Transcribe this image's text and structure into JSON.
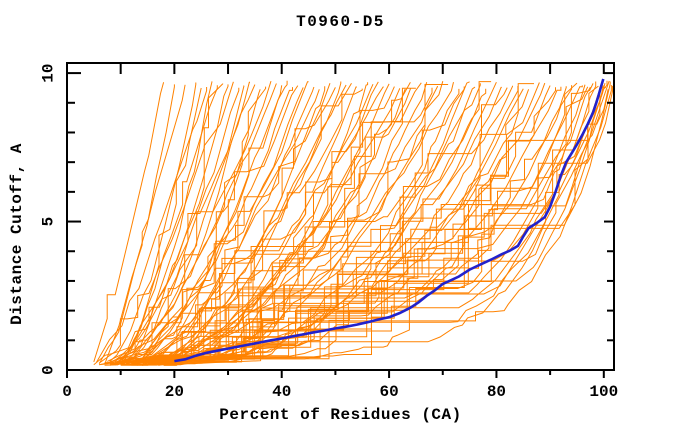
{
  "chart_data": {
    "type": "line",
    "title": "T0960-D5",
    "xlabel": "Percent of Residues (CA)",
    "ylabel": "Distance Cutoff, A",
    "xlim": [
      0,
      101.9
    ],
    "ylim": [
      0,
      10.34
    ],
    "x_major_ticks": [
      0,
      20,
      40,
      60,
      80,
      100
    ],
    "x_minor_tick_step": 10,
    "y_major_ticks": [
      0,
      5,
      10
    ],
    "y_minor_tick_step": 1,
    "grid": "off",
    "legend": "none",
    "colors": {
      "prediction_lines": "#ff8200",
      "highlighted_model": "#2222cc",
      "axes": "#000000",
      "background": "#ffffff"
    },
    "highlighted_model": {
      "color_name": "blue",
      "points": [
        [
          20,
          0.3
        ],
        [
          22,
          0.36
        ],
        [
          24,
          0.48
        ],
        [
          26,
          0.58
        ],
        [
          28,
          0.65
        ],
        [
          30,
          0.72
        ],
        [
          32,
          0.79
        ],
        [
          34,
          0.86
        ],
        [
          36,
          0.93
        ],
        [
          38,
          1.0
        ],
        [
          40,
          1.06
        ],
        [
          42,
          1.13
        ],
        [
          44,
          1.2
        ],
        [
          46,
          1.27
        ],
        [
          48,
          1.33
        ],
        [
          50,
          1.4
        ],
        [
          52,
          1.46
        ],
        [
          54,
          1.53
        ],
        [
          56,
          1.61
        ],
        [
          58,
          1.7
        ],
        [
          60,
          1.78
        ],
        [
          62,
          1.92
        ],
        [
          64,
          2.1
        ],
        [
          65.5,
          2.28
        ],
        [
          67,
          2.5
        ],
        [
          68.5,
          2.68
        ],
        [
          70,
          2.9
        ],
        [
          71.5,
          3.02
        ],
        [
          73,
          3.15
        ],
        [
          75,
          3.38
        ],
        [
          77,
          3.55
        ],
        [
          79,
          3.72
        ],
        [
          81,
          3.9
        ],
        [
          82.5,
          4.02
        ],
        [
          84,
          4.18
        ],
        [
          85,
          4.5
        ],
        [
          86,
          4.78
        ],
        [
          87.5,
          4.95
        ],
        [
          89,
          5.15
        ],
        [
          90,
          5.5
        ],
        [
          91,
          6.0
        ],
        [
          92,
          6.55
        ],
        [
          93,
          7.0
        ],
        [
          94,
          7.3
        ],
        [
          95,
          7.6
        ],
        [
          96,
          7.92
        ],
        [
          97,
          8.28
        ],
        [
          98,
          8.68
        ],
        [
          98.6,
          9.0
        ],
        [
          99.1,
          9.3
        ],
        [
          99.5,
          9.55
        ],
        [
          99.9,
          9.8
        ]
      ]
    },
    "prediction_models": {
      "color_name": "orange",
      "y_baseline": 0.2,
      "y_top": 9.6,
      "curve_params_legend": [
        "x_percent_at_liftoff",
        "x_percent_at_top",
        "shape_exponent"
      ],
      "curve_params": [
        [
          5,
          18,
          1.2
        ],
        [
          6,
          20,
          1.5
        ],
        [
          7,
          22,
          1.1
        ],
        [
          8,
          24,
          1.6
        ],
        [
          5.5,
          26,
          1.3
        ],
        [
          9,
          27,
          1.8
        ],
        [
          10,
          28,
          1.2
        ],
        [
          6,
          29,
          1.5
        ],
        [
          11,
          30,
          1.4
        ],
        [
          7.5,
          31,
          1.7
        ],
        [
          12,
          32,
          1.3
        ],
        [
          8,
          33,
          1.9
        ],
        [
          13,
          34,
          1.5
        ],
        [
          9,
          35,
          1.2
        ],
        [
          14,
          36,
          1.8
        ],
        [
          10,
          25,
          1.4
        ],
        [
          6,
          37,
          1.9
        ],
        [
          5,
          38,
          1.6
        ],
        [
          11,
          39,
          1.3
        ],
        [
          7,
          40,
          2.0
        ],
        [
          12,
          41,
          1.5
        ],
        [
          8,
          42,
          1.8
        ],
        [
          13,
          43,
          1.4
        ],
        [
          6,
          44,
          2.1
        ],
        [
          14,
          45,
          1.6
        ],
        [
          9,
          46,
          1.9
        ],
        [
          15,
          47,
          1.3
        ],
        [
          10,
          48,
          2.2
        ],
        [
          16,
          49,
          1.7
        ],
        [
          7,
          50,
          1.5
        ],
        [
          12,
          51,
          2.0
        ],
        [
          8,
          52,
          1.8
        ],
        [
          17,
          53,
          1.4
        ],
        [
          11,
          54,
          2.3
        ],
        [
          9,
          55,
          1.6
        ],
        [
          18,
          56,
          2.0
        ],
        [
          13,
          57,
          1.8
        ],
        [
          10,
          58,
          2.4
        ],
        [
          15,
          59,
          1.5
        ],
        [
          12,
          60,
          2.1
        ],
        [
          8,
          61,
          2.2
        ],
        [
          14,
          62,
          1.8
        ],
        [
          10,
          63,
          2.5
        ],
        [
          16,
          64,
          2.0
        ],
        [
          7,
          64,
          2.4
        ],
        [
          9,
          65,
          2.8
        ],
        [
          12,
          66,
          1.9
        ],
        [
          18,
          67,
          2.3
        ],
        [
          11,
          68,
          2.6
        ],
        [
          15,
          69,
          2.1
        ],
        [
          8,
          70,
          2.9
        ],
        [
          13,
          71,
          2.4
        ],
        [
          17,
          72,
          2.0
        ],
        [
          10,
          73,
          3.0
        ],
        [
          14,
          74,
          2.2
        ],
        [
          19,
          75,
          2.6
        ],
        [
          9,
          76,
          3.2
        ],
        [
          16,
          77,
          2.3
        ],
        [
          12,
          78,
          2.8
        ],
        [
          18,
          79,
          2.5
        ],
        [
          11,
          80,
          3.3
        ],
        [
          15,
          81,
          2.7
        ],
        [
          13,
          82,
          3.0
        ],
        [
          19,
          83,
          2.4
        ],
        [
          10,
          84,
          3.5
        ],
        [
          16,
          85,
          2.9
        ],
        [
          12,
          86,
          3.2
        ],
        [
          17,
          87,
          2.8
        ],
        [
          9,
          88,
          3.6
        ],
        [
          14,
          89,
          3.0
        ],
        [
          19,
          90,
          3.4
        ],
        [
          11,
          91,
          3.8
        ],
        [
          16,
          92,
          3.1
        ],
        [
          13,
          93,
          4.0
        ],
        [
          18,
          94,
          3.3
        ],
        [
          10,
          95,
          4.3
        ],
        [
          15,
          96,
          3.6
        ],
        [
          12,
          96.5,
          4.6
        ],
        [
          19,
          97,
          3.9
        ],
        [
          9,
          97.5,
          5.0
        ],
        [
          16,
          98,
          4.2
        ],
        [
          13,
          98.5,
          5.4
        ],
        [
          17,
          99,
          4.5
        ],
        [
          11,
          99.3,
          5.8
        ],
        [
          14,
          99.6,
          4.8
        ],
        [
          18,
          99.9,
          6.2
        ],
        [
          10,
          100.2,
          5.2
        ],
        [
          15,
          100.4,
          6.6
        ],
        [
          12,
          100.6,
          5.6
        ],
        [
          16,
          100.8,
          7.0
        ],
        [
          13,
          101,
          6.0
        ],
        [
          19,
          101.2,
          7.5
        ],
        [
          15,
          101.4,
          6.4
        ],
        [
          17,
          101.6,
          8.0
        ]
      ]
    }
  }
}
